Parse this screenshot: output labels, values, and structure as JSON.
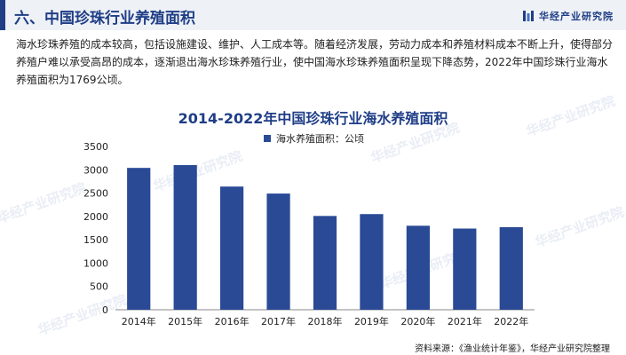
{
  "header": {
    "section_title": "六、中国珍珠行业养殖面积",
    "brand_name": "华经产业研究院"
  },
  "description": "海水珍珠养殖的成本较高，包括设施建设、维护、人工成本等。随着经济发展，劳动力成本和养殖材料成本不断上升，使得部分养殖户难以承受高昂的成本，逐渐退出海水珍珠养殖行业，使中国海水珍珠养殖面积呈现下降态势，2022年中国珍珠行业海水养殖面积为1769公顷。",
  "watermark_text": "华经产业研究院",
  "source": "资料来源：《渔业统计年鉴》，华经产业研究院整理",
  "colors": {
    "accent": "#1f3e86",
    "bar": "#2a4a96"
  },
  "chart_data": {
    "type": "bar",
    "title": "2014-2022年中国珍珠行业海水养殖面积",
    "categories": [
      "2014年",
      "2015年",
      "2016年",
      "2017年",
      "2018年",
      "2019年",
      "2020年",
      "2021年",
      "2022年"
    ],
    "series": [
      {
        "name": "海水养殖面积：公顷",
        "values": [
          3040,
          3100,
          2640,
          2490,
          2010,
          2050,
          1800,
          1740,
          1769
        ]
      }
    ],
    "ylim": [
      0,
      3500
    ],
    "yticks": [
      0,
      500,
      1000,
      1500,
      2000,
      2500,
      3000,
      3500
    ],
    "grid": false,
    "legend": "top-right"
  }
}
